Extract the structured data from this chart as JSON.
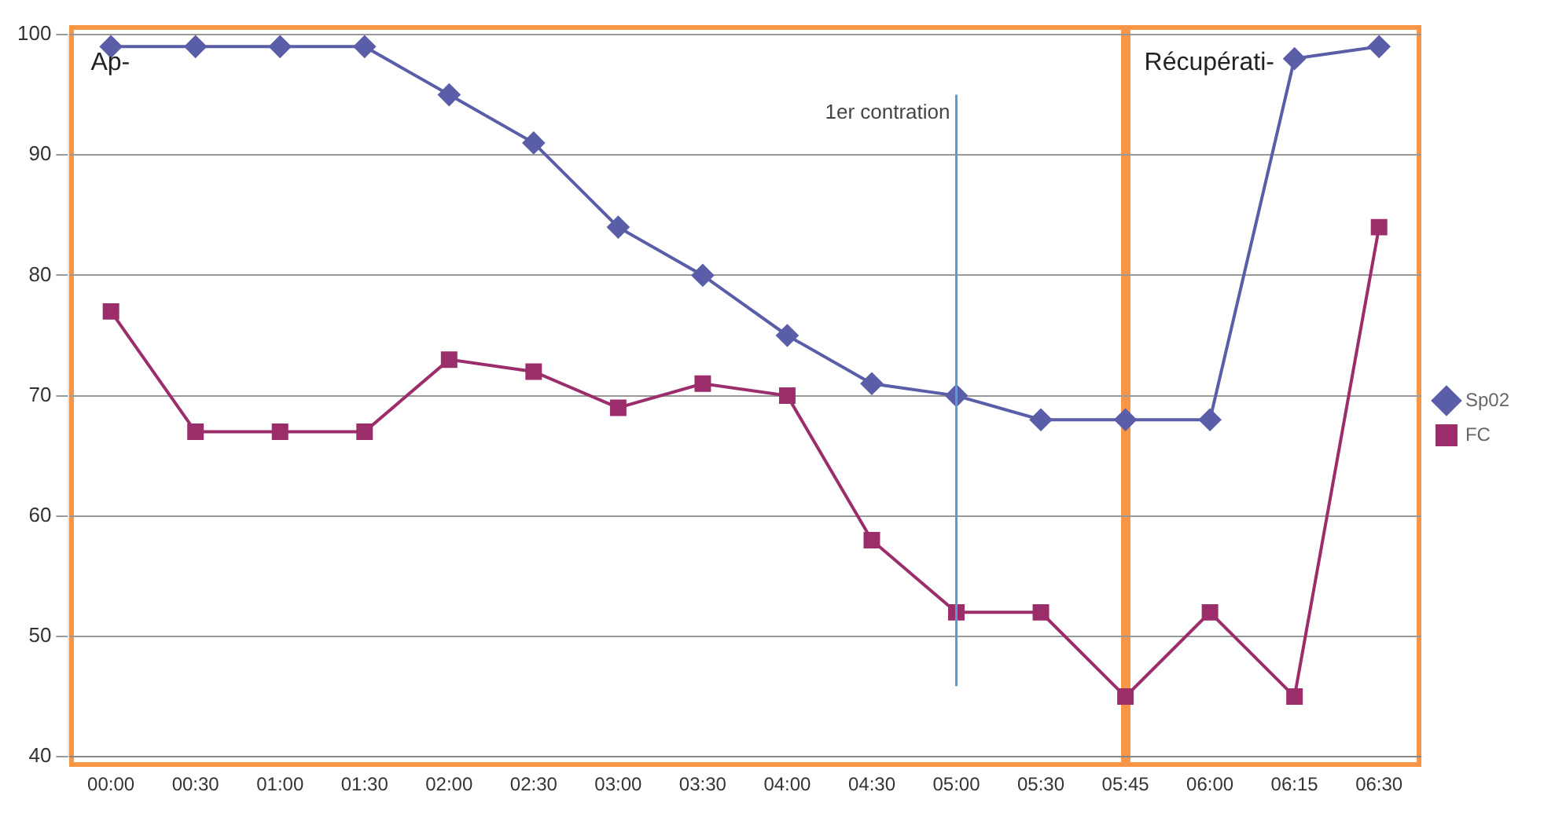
{
  "chart_data": {
    "type": "line",
    "categories": [
      "00:00",
      "00:30",
      "01:00",
      "01:30",
      "02:00",
      "02:30",
      "03:00",
      "03:30",
      "04:00",
      "04:30",
      "05:00",
      "05:30",
      "05:45",
      "06:00",
      "06:15",
      "06:30"
    ],
    "series": [
      {
        "name": "Sp02",
        "color": "#5a5ea8",
        "marker": "diamond",
        "values": [
          99,
          99,
          99,
          99,
          95,
          91,
          84,
          80,
          75,
          71,
          70,
          68,
          68,
          68,
          98,
          99
        ]
      },
      {
        "name": "FC",
        "color": "#9b2d6b",
        "marker": "square",
        "values": [
          77,
          67,
          67,
          67,
          73,
          72,
          69,
          71,
          70,
          58,
          52,
          52,
          45,
          52,
          45,
          84
        ]
      }
    ],
    "ylim": [
      40,
      100
    ],
    "yticks": [
      40,
      50,
      60,
      70,
      80,
      90,
      100
    ],
    "grid": "y",
    "legend": "right",
    "annotations": [
      "Ap-",
      "Récupérati-"
    ],
    "ref_lines": [
      {
        "axis": "x",
        "value": "05:00",
        "label": "1er contration",
        "color": "#5b9bd5"
      }
    ]
  }
}
